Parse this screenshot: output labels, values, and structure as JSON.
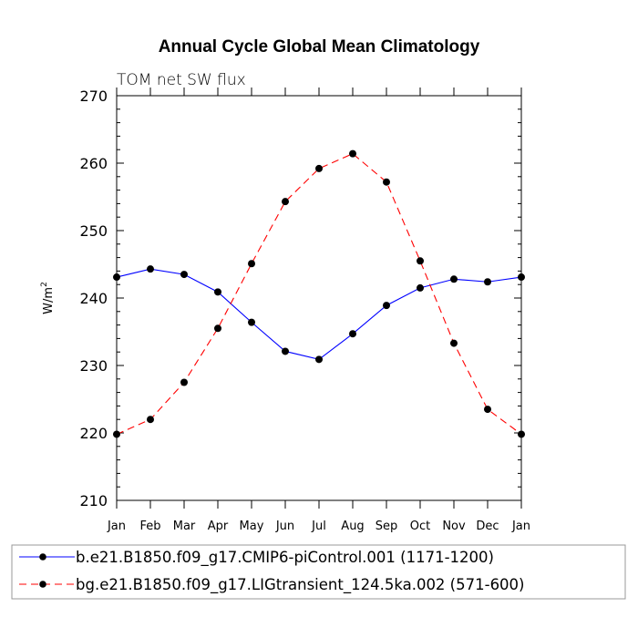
{
  "chart_data": {
    "type": "line",
    "title": "Annual Cycle Global Mean Climatology",
    "subtitle": "TOM net SW flux",
    "ylabel": "W/m",
    "ylabel_superscript": "2",
    "xlabel": "",
    "ylim": [
      210,
      270
    ],
    "yticks": [
      210,
      220,
      230,
      240,
      250,
      260,
      270
    ],
    "categories": [
      "Jan",
      "Feb",
      "Mar",
      "Apr",
      "May",
      "Jun",
      "Jul",
      "Aug",
      "Sep",
      "Oct",
      "Nov",
      "Dec",
      "Jan"
    ],
    "grid": false,
    "legend_position": "bottom",
    "series": [
      {
        "name": "b.e21.B1850.f09_g17.CMIP6-piControl.001 (1171-1200)",
        "color": "#0000ff",
        "dash": "solid",
        "values": [
          243.1,
          244.3,
          243.5,
          240.9,
          236.4,
          232.1,
          230.9,
          234.7,
          238.9,
          241.5,
          242.8,
          242.4,
          243.1
        ]
      },
      {
        "name": "bg.e21.B1850.f09_g17.LIGtransient_124.5ka.002 (571-600)",
        "color": "#ff0000",
        "dash": "dashed",
        "values": [
          219.8,
          222.0,
          227.5,
          235.5,
          245.1,
          254.3,
          259.2,
          261.4,
          257.2,
          245.5,
          233.3,
          223.5,
          219.8
        ]
      }
    ]
  }
}
